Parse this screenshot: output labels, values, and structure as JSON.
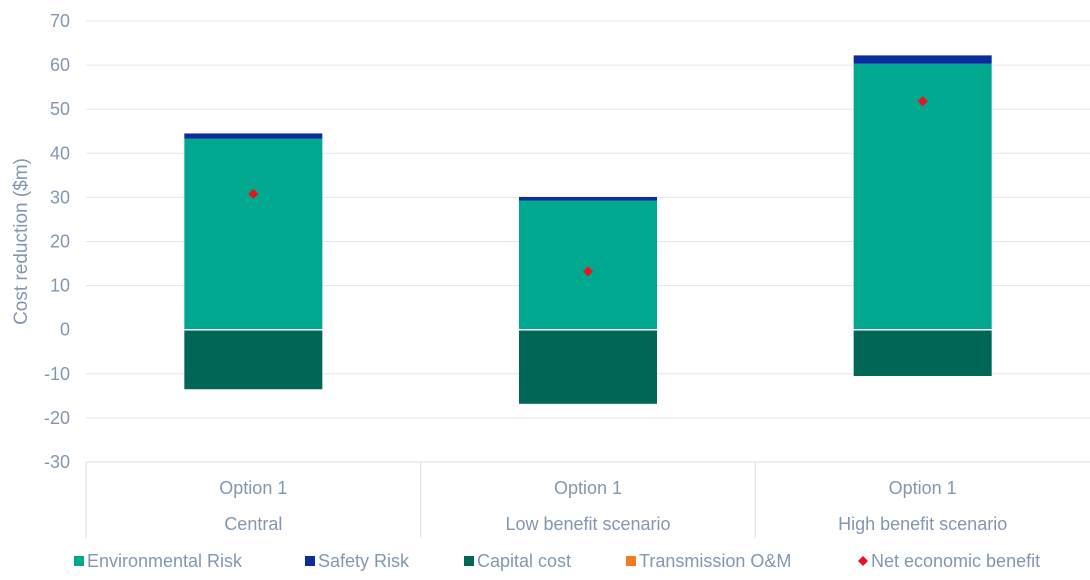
{
  "chart_data": {
    "type": "bar",
    "stacked": true,
    "title": "",
    "xlabel": "",
    "ylabel": "Cost reduction ($m)",
    "ylim": [
      -30,
      70
    ],
    "yticks": [
      70,
      60,
      50,
      40,
      30,
      20,
      10,
      0,
      -10,
      -20,
      -30
    ],
    "ytick_labels": [
      "70",
      "60",
      "50",
      "40",
      "30",
      "20",
      "10",
      "0",
      "-10",
      "-20",
      "-30"
    ],
    "grid": "horizontal",
    "legend_position": "bottom",
    "categories": [
      {
        "option": "Option 1",
        "scenario": "Central"
      },
      {
        "option": "Option 1",
        "scenario": "Low benefit scenario"
      },
      {
        "option": "Option 1",
        "scenario": "High benefit scenario"
      }
    ],
    "series": [
      {
        "name": "Environmental Risk",
        "color": "#00a88f",
        "values": [
          43.3,
          29.3,
          60.3
        ]
      },
      {
        "name": "Safety Risk",
        "color": "#0a2c9e",
        "values": [
          1.2,
          0.8,
          1.9
        ]
      },
      {
        "name": "Capital cost",
        "color": "#006655",
        "values": [
          -13.5,
          -16.8,
          -10.5
        ]
      },
      {
        "name": "Transmission O&M",
        "color": "#f37a20",
        "values": [
          0,
          0,
          0
        ]
      }
    ],
    "markers": {
      "name": "Net economic benefit",
      "color": "#e8141c",
      "values": [
        30.8,
        13.2,
        51.8
      ]
    }
  }
}
